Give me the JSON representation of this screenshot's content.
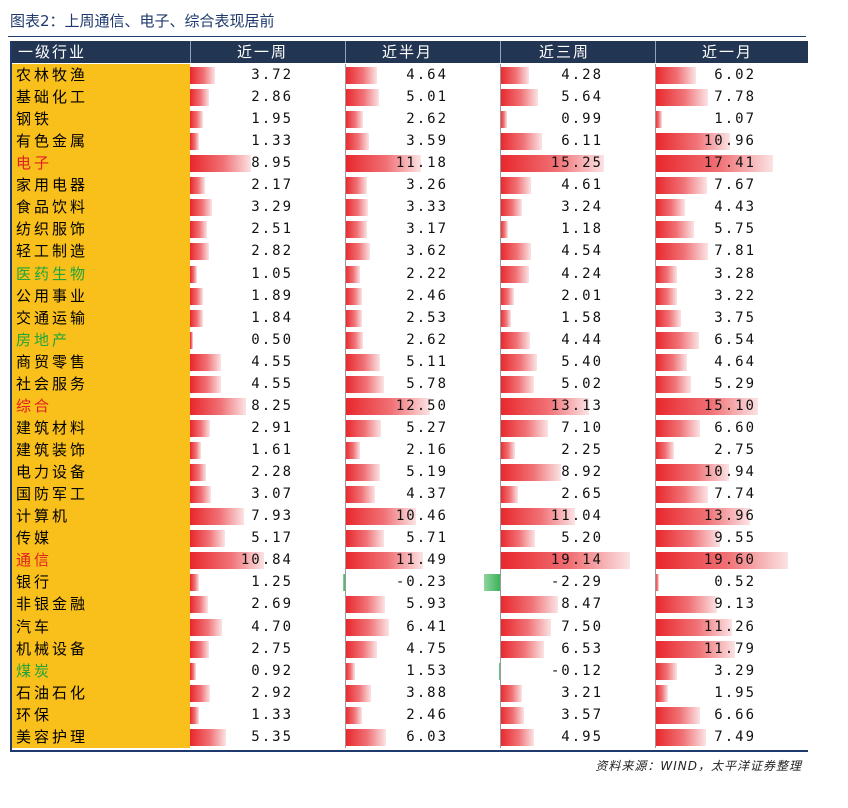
{
  "title": "图表2：上周通信、电子、综合表现居前",
  "columns": [
    "一级行业",
    "近一周",
    "近半月",
    "近三周",
    "近一月"
  ],
  "rows": [
    {
      "name": "农林牧渔",
      "values": [
        "3.72",
        "4.64",
        "4.28",
        "6.02"
      ],
      "highlight": ""
    },
    {
      "name": "基础化工",
      "values": [
        "2.86",
        "5.01",
        "5.64",
        "7.78"
      ],
      "highlight": ""
    },
    {
      "name": "钢铁",
      "values": [
        "1.95",
        "2.62",
        "0.99",
        "1.07"
      ],
      "highlight": ""
    },
    {
      "name": "有色金属",
      "values": [
        "1.33",
        "3.59",
        "6.11",
        "10.96"
      ],
      "highlight": ""
    },
    {
      "name": "电子",
      "values": [
        "8.95",
        "11.18",
        "15.25",
        "17.41"
      ],
      "highlight": "red"
    },
    {
      "name": "家用电器",
      "values": [
        "2.17",
        "3.26",
        "4.61",
        "7.67"
      ],
      "highlight": ""
    },
    {
      "name": "食品饮料",
      "values": [
        "3.29",
        "3.33",
        "3.24",
        "4.43"
      ],
      "highlight": ""
    },
    {
      "name": "纺织服饰",
      "values": [
        "2.51",
        "3.17",
        "1.18",
        "5.75"
      ],
      "highlight": ""
    },
    {
      "name": "轻工制造",
      "values": [
        "2.82",
        "3.62",
        "4.54",
        "7.81"
      ],
      "highlight": ""
    },
    {
      "name": "医药生物",
      "values": [
        "1.05",
        "2.22",
        "4.24",
        "3.28"
      ],
      "highlight": "green"
    },
    {
      "name": "公用事业",
      "values": [
        "1.89",
        "2.46",
        "2.01",
        "3.22"
      ],
      "highlight": ""
    },
    {
      "name": "交通运输",
      "values": [
        "1.84",
        "2.53",
        "1.58",
        "3.75"
      ],
      "highlight": ""
    },
    {
      "name": "房地产",
      "values": [
        "0.50",
        "2.62",
        "4.44",
        "6.54"
      ],
      "highlight": "green"
    },
    {
      "name": "商贸零售",
      "values": [
        "4.55",
        "5.11",
        "5.40",
        "4.64"
      ],
      "highlight": ""
    },
    {
      "name": "社会服务",
      "values": [
        "4.55",
        "5.78",
        "5.02",
        "5.29"
      ],
      "highlight": ""
    },
    {
      "name": "综合",
      "values": [
        "8.25",
        "12.50",
        "13.13",
        "15.10"
      ],
      "highlight": "red"
    },
    {
      "name": "建筑材料",
      "values": [
        "2.91",
        "5.27",
        "7.10",
        "6.60"
      ],
      "highlight": ""
    },
    {
      "name": "建筑装饰",
      "values": [
        "1.61",
        "2.16",
        "2.25",
        "2.75"
      ],
      "highlight": ""
    },
    {
      "name": "电力设备",
      "values": [
        "2.28",
        "5.19",
        "8.92",
        "10.94"
      ],
      "highlight": ""
    },
    {
      "name": "国防军工",
      "values": [
        "3.07",
        "4.37",
        "2.65",
        "7.74"
      ],
      "highlight": ""
    },
    {
      "name": "计算机",
      "values": [
        "7.93",
        "10.46",
        "11.04",
        "13.96"
      ],
      "highlight": ""
    },
    {
      "name": "传媒",
      "values": [
        "5.17",
        "5.71",
        "5.20",
        "9.55"
      ],
      "highlight": ""
    },
    {
      "name": "通信",
      "values": [
        "10.84",
        "11.49",
        "19.14",
        "19.60"
      ],
      "highlight": "red"
    },
    {
      "name": "银行",
      "values": [
        "1.25",
        "-0.23",
        "-2.29",
        "0.52"
      ],
      "highlight": ""
    },
    {
      "name": "非银金融",
      "values": [
        "2.69",
        "5.93",
        "8.47",
        "9.13"
      ],
      "highlight": ""
    },
    {
      "name": "汽车",
      "values": [
        "4.70",
        "6.41",
        "7.50",
        "11.26"
      ],
      "highlight": ""
    },
    {
      "name": "机械设备",
      "values": [
        "2.75",
        "4.75",
        "6.53",
        "11.79"
      ],
      "highlight": ""
    },
    {
      "name": "煤炭",
      "values": [
        "0.92",
        "1.53",
        "-0.12",
        "3.29"
      ],
      "highlight": "green"
    },
    {
      "name": "石油石化",
      "values": [
        "2.92",
        "3.88",
        "3.21",
        "1.95"
      ],
      "highlight": ""
    },
    {
      "name": "环保",
      "values": [
        "1.33",
        "2.46",
        "3.57",
        "6.66"
      ],
      "highlight": ""
    },
    {
      "name": "美容护理",
      "values": [
        "5.35",
        "6.03",
        "4.95",
        "7.49"
      ],
      "highlight": ""
    }
  ],
  "colors": {
    "header_bg": "#223552",
    "industry_bg": "#f9bf1a",
    "positive_bar": "#e8262b",
    "negative_bar": "#3cb35a",
    "highlight_red": "#e02020",
    "highlight_green": "#22a43a"
  },
  "source": "资料来源：WIND，太平洋证券整理"
}
